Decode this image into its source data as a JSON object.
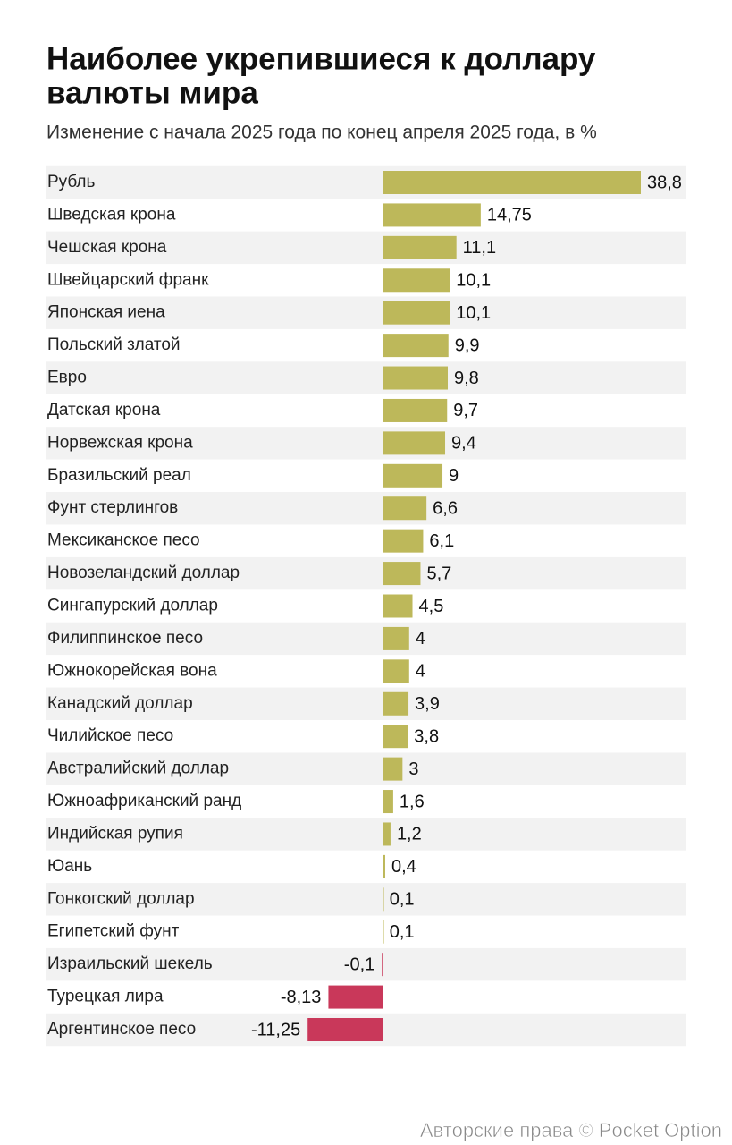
{
  "chart_data": {
    "type": "bar",
    "orientation": "horizontal",
    "title": [
      "Наиболее укрепившиеся к доллару",
      "валюты мира"
    ],
    "subtitle": "Изменение с начала 2025 года по конец апреля 2025 года, в %",
    "categories": [
      "Рубль",
      "Шведская крона",
      "Чешская крона",
      "Швейцарский франк",
      "Японская иена",
      "Польский златой",
      "Евро",
      "Датская крона",
      "Норвежская крона",
      "Бразильский реал",
      "Фунт стерлингов",
      "Мексиканское песо",
      "Новозеландский доллар",
      "Сингапурский доллар",
      "Филиппинское песо",
      "Южнокорейская вона",
      "Канадский доллар",
      "Чилийское песо",
      "Австралийский доллар",
      "Южноафриканский ранд",
      "Индийская рупия",
      "Юань",
      "Гонкогский доллар",
      "Египетский фунт",
      "Израильский шекель",
      "Турецкая лира",
      "Аргентинское песо"
    ],
    "values": [
      38.8,
      14.75,
      11.1,
      10.1,
      10.1,
      9.9,
      9.8,
      9.7,
      9.4,
      9,
      6.6,
      6.1,
      5.7,
      4.5,
      4,
      4,
      3.9,
      3.8,
      3,
      1.6,
      1.2,
      0.4,
      0.1,
      0.1,
      -0.1,
      -8.13,
      -11.25
    ],
    "value_labels": [
      "38,8",
      "14,75",
      "11,1",
      "10,1",
      "10,1",
      "9,9",
      "9,8",
      "9,7",
      "9,4",
      "9",
      "6,6",
      "6,1",
      "5,7",
      "4,5",
      "4",
      "4",
      "3,9",
      "3,8",
      "3",
      "1,6",
      "1,2",
      "0,4",
      "0,1",
      "0,1",
      "-0,1",
      "-8,13",
      "-11,25"
    ],
    "color": "#bdb85a",
    "negative_color": "#c9385a",
    "watermark": "Авторские права © Pocket Option"
  }
}
